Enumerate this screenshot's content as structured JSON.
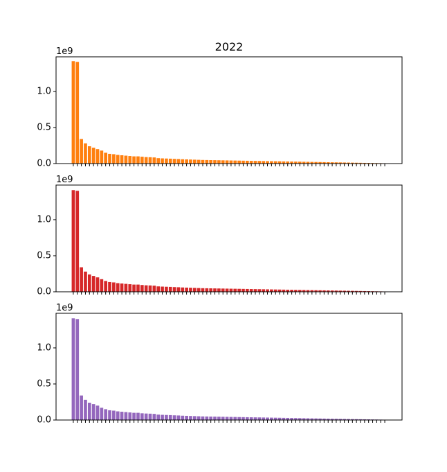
{
  "chart_data": [
    {
      "type": "bar",
      "title": "2022",
      "offset_label": "1e9",
      "color": "#ff7f0e",
      "ylim": [
        0,
        1.48
      ],
      "yticks": [
        "0.0",
        "0.5",
        "1.0"
      ],
      "bar_count": 78,
      "values": [
        1.42,
        1.41,
        0.34,
        0.28,
        0.24,
        0.22,
        0.2,
        0.18,
        0.15,
        0.135,
        0.13,
        0.12,
        0.115,
        0.11,
        0.105,
        0.1,
        0.1,
        0.095,
        0.09,
        0.088,
        0.085,
        0.075,
        0.072,
        0.07,
        0.068,
        0.065,
        0.063,
        0.06,
        0.058,
        0.056,
        0.054,
        0.052,
        0.05,
        0.049,
        0.048,
        0.047,
        0.046,
        0.045,
        0.044,
        0.043,
        0.042,
        0.041,
        0.04,
        0.039,
        0.038,
        0.037,
        0.036,
        0.035,
        0.034,
        0.033,
        0.032,
        0.031,
        0.03,
        0.029,
        0.028,
        0.027,
        0.026,
        0.025,
        0.024,
        0.023,
        0.022,
        0.021,
        0.02,
        0.019,
        0.018,
        0.017,
        0.016,
        0.015,
        0.014,
        0.013,
        0.012,
        0.011,
        0.01,
        0.009,
        0.008,
        0.007,
        0.006,
        0.005
      ]
    },
    {
      "type": "bar",
      "title": "",
      "offset_label": "1e9",
      "color": "#d62728",
      "ylim": [
        0,
        1.48
      ],
      "yticks": [
        "0.0",
        "0.5",
        "1.0"
      ],
      "bar_count": 78,
      "values": [
        1.41,
        1.4,
        0.34,
        0.28,
        0.24,
        0.22,
        0.2,
        0.175,
        0.15,
        0.135,
        0.13,
        0.12,
        0.115,
        0.11,
        0.105,
        0.1,
        0.1,
        0.094,
        0.09,
        0.088,
        0.085,
        0.075,
        0.072,
        0.07,
        0.068,
        0.065,
        0.063,
        0.06,
        0.058,
        0.056,
        0.054,
        0.052,
        0.05,
        0.049,
        0.048,
        0.047,
        0.046,
        0.045,
        0.044,
        0.043,
        0.042,
        0.041,
        0.04,
        0.039,
        0.038,
        0.037,
        0.036,
        0.035,
        0.034,
        0.033,
        0.032,
        0.031,
        0.03,
        0.029,
        0.028,
        0.027,
        0.026,
        0.025,
        0.024,
        0.023,
        0.022,
        0.021,
        0.02,
        0.019,
        0.018,
        0.017,
        0.016,
        0.015,
        0.014,
        0.013,
        0.012,
        0.011,
        0.01,
        0.009,
        0.008,
        0.007,
        0.006,
        0.005
      ]
    },
    {
      "type": "bar",
      "title": "",
      "offset_label": "1e9",
      "color": "#9467bd",
      "ylim": [
        0,
        1.48
      ],
      "yticks": [
        "0.0",
        "0.5",
        "1.0"
      ],
      "bar_count": 78,
      "values": [
        1.41,
        1.4,
        0.34,
        0.28,
        0.24,
        0.22,
        0.2,
        0.17,
        0.15,
        0.135,
        0.13,
        0.12,
        0.115,
        0.11,
        0.105,
        0.1,
        0.1,
        0.093,
        0.09,
        0.088,
        0.085,
        0.075,
        0.072,
        0.07,
        0.068,
        0.065,
        0.063,
        0.06,
        0.058,
        0.056,
        0.054,
        0.052,
        0.05,
        0.049,
        0.048,
        0.047,
        0.046,
        0.045,
        0.044,
        0.043,
        0.042,
        0.041,
        0.04,
        0.039,
        0.038,
        0.037,
        0.036,
        0.035,
        0.034,
        0.033,
        0.032,
        0.031,
        0.03,
        0.029,
        0.028,
        0.027,
        0.026,
        0.025,
        0.024,
        0.023,
        0.022,
        0.021,
        0.02,
        0.019,
        0.018,
        0.017,
        0.016,
        0.015,
        0.014,
        0.013,
        0.012,
        0.011,
        0.01,
        0.009,
        0.008,
        0.007,
        0.006,
        0.005
      ]
    }
  ]
}
